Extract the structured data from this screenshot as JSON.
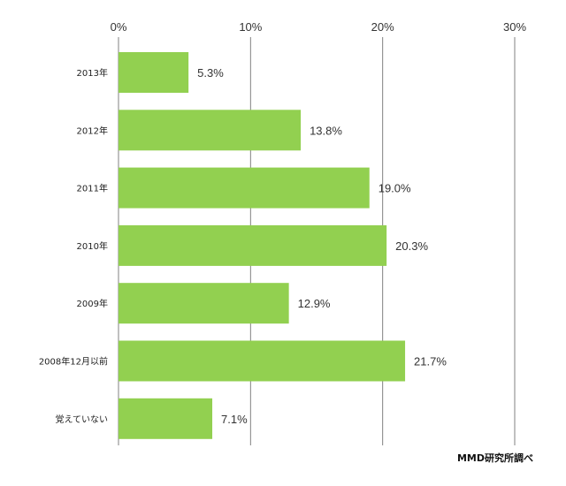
{
  "chart_data": {
    "type": "bar",
    "orientation": "horizontal",
    "categories": [
      "2013年",
      "2012年",
      "2011年",
      "2010年",
      "2009年",
      "2008年12月以前",
      "覚えていない"
    ],
    "values": [
      5.3,
      13.8,
      19.0,
      20.3,
      12.9,
      21.7,
      7.1
    ],
    "data_labels": [
      "5.3%",
      "13.8%",
      "19.0%",
      "20.3%",
      "12.9%",
      "21.7%",
      "7.1%"
    ],
    "xlim": [
      0,
      30
    ],
    "x_ticks": [
      0,
      10,
      20,
      30
    ],
    "x_tick_labels": [
      "0%",
      "10%",
      "20%",
      "30%"
    ],
    "x_axis_position": "top",
    "grid": true,
    "legend": "none",
    "bar_color": "#92d050",
    "gridline_color": "#808080",
    "source": "MMD研究所調べ"
  }
}
